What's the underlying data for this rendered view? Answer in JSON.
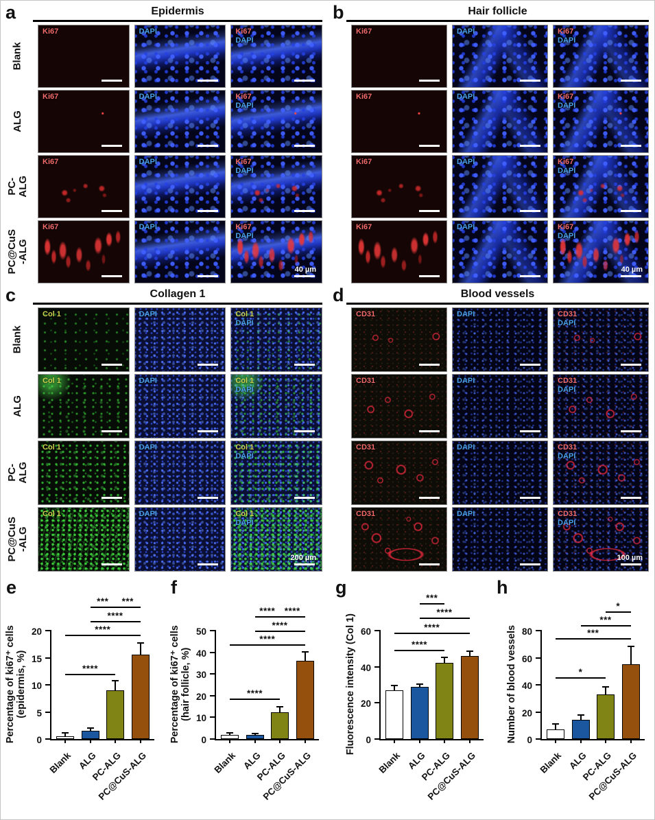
{
  "micro_panels": [
    {
      "id": "a",
      "letter": "a",
      "title": "Epidermis",
      "marker": "Ki67",
      "dapi": "DAPI",
      "scale": "40 µm",
      "marker_color": "#f26a6a",
      "dapi_color": "#4aa0e8",
      "rows": [
        "Blank",
        "ALG",
        "PC-ALG",
        "PC@CuS\n-ALG"
      ],
      "columns": [
        "Ki67",
        "DAPI",
        "Ki67 + DAPI"
      ]
    },
    {
      "id": "b",
      "letter": "b",
      "title": "Hair follicle",
      "marker": "Ki67",
      "dapi": "DAPI",
      "scale": "40 µm",
      "marker_color": "#f26a6a",
      "dapi_color": "#4aa0e8",
      "rows": [],
      "columns": [
        "Ki67",
        "DAPI",
        "Ki67 + DAPI"
      ]
    },
    {
      "id": "c",
      "letter": "c",
      "title": "Collagen 1",
      "marker": "Col 1",
      "dapi": "DAPI",
      "scale": "200 µm",
      "marker_color": "#cdd34f",
      "dapi_color": "#4aa0e8",
      "rows": [
        "Blank",
        "ALG",
        "PC-ALG",
        "PC@CuS\n-ALG"
      ],
      "columns": [
        "Col 1",
        "DAPI",
        "Col 1 + DAPI"
      ]
    },
    {
      "id": "d",
      "letter": "d",
      "title": "Blood vessels",
      "marker": "CD31",
      "dapi": "DAPI",
      "scale": "100 µm",
      "marker_color": "#f26a6a",
      "dapi_color": "#4aa0e8",
      "rows": [],
      "columns": [
        "CD31",
        "DAPI",
        "CD31 + DAPI"
      ]
    }
  ],
  "chart_data": [
    {
      "id": "e",
      "letter": "e",
      "type": "bar",
      "ylabel_lines": [
        "Percentage of ki67⁺ cells",
        "(epidermis, %)"
      ],
      "categories": [
        "Blank",
        "ALG",
        "PC-ALG",
        "PC@CuS-ALG"
      ],
      "values": [
        0.5,
        1.5,
        9.0,
        15.6
      ],
      "errors": [
        0.6,
        0.5,
        1.7,
        2.1
      ],
      "ymax": 20,
      "yticks": [
        0,
        5,
        10,
        15,
        20
      ],
      "bar_colors": [
        "#ffffff",
        "#1a579f",
        "#808414",
        "#96500d"
      ],
      "brackets": [
        {
          "from": 0,
          "to": 2,
          "label": "****",
          "y": 11.8
        },
        {
          "from": 0,
          "to": 3,
          "label": "****",
          "y": 19.0
        },
        {
          "from": 1,
          "to": 3,
          "label": "****",
          "y": 21.5
        },
        {
          "from": 1,
          "to": 2,
          "label": "***",
          "y": 24.2
        },
        {
          "from": 2,
          "to": 3,
          "label": "***",
          "y": 24.2
        }
      ]
    },
    {
      "id": "f",
      "letter": "f",
      "type": "bar",
      "ylabel_lines": [
        "Percentage of ki67⁺ cells",
        "(hair follicle, %)"
      ],
      "categories": [
        "Blank",
        "ALG",
        "PC-ALG",
        "PC@CuS-ALG"
      ],
      "values": [
        1.8,
        2.0,
        12.3,
        36.0
      ],
      "errors": [
        1.2,
        0.4,
        2.6,
        4.2
      ],
      "ymax": 50,
      "yticks": [
        0,
        10,
        20,
        30,
        40,
        50
      ],
      "bar_colors": [
        "#ffffff",
        "#1a579f",
        "#808414",
        "#96500d"
      ],
      "brackets": [
        {
          "from": 0,
          "to": 2,
          "label": "****",
          "y": 18.0
        },
        {
          "from": 0,
          "to": 3,
          "label": "****",
          "y": 43.0
        },
        {
          "from": 1,
          "to": 3,
          "label": "****",
          "y": 49.5
        },
        {
          "from": 1,
          "to": 2,
          "label": "****",
          "y": 56.0
        },
        {
          "from": 2,
          "to": 3,
          "label": "****",
          "y": 56.0
        }
      ]
    },
    {
      "id": "g",
      "letter": "g",
      "type": "bar",
      "ylabel_lines": [
        "Fluorescence intensity (Col 1)"
      ],
      "categories": [
        "Blank",
        "ALG",
        "PC-ALG",
        "PC@CuS-ALG"
      ],
      "values": [
        27,
        29,
        42,
        46
      ],
      "errors": [
        2.5,
        1.5,
        3.3,
        2.5
      ],
      "ymax": 60,
      "yticks": [
        0,
        20,
        40,
        60
      ],
      "bar_colors": [
        "#ffffff",
        "#1a579f",
        "#808414",
        "#96500d"
      ],
      "brackets": [
        {
          "from": 0,
          "to": 2,
          "label": "****",
          "y": 48.5
        },
        {
          "from": 0,
          "to": 3,
          "label": "****",
          "y": 58.0
        },
        {
          "from": 1,
          "to": 3,
          "label": "****",
          "y": 66.5
        },
        {
          "from": 1,
          "to": 2,
          "label": "***",
          "y": 74.5
        }
      ]
    },
    {
      "id": "h",
      "letter": "h",
      "type": "bar",
      "ylabel_lines": [
        "Number of blood vessels"
      ],
      "categories": [
        "Blank",
        "ALG",
        "PC-ALG",
        "PC@CuS-ALG"
      ],
      "values": [
        7,
        14,
        33,
        55
      ],
      "errors": [
        4.0,
        3.6,
        5.5,
        13.5
      ],
      "ymax": 80,
      "yticks": [
        0,
        20,
        40,
        60,
        80
      ],
      "bar_colors": [
        "#ffffff",
        "#1a579f",
        "#808414",
        "#96500d"
      ],
      "brackets": [
        {
          "from": 0,
          "to": 2,
          "label": "*",
          "y": 44.5
        },
        {
          "from": 0,
          "to": 3,
          "label": "***",
          "y": 73.5
        },
        {
          "from": 1,
          "to": 3,
          "label": "***",
          "y": 83.0
        },
        {
          "from": 2,
          "to": 3,
          "label": "*",
          "y": 93.0
        }
      ]
    }
  ]
}
